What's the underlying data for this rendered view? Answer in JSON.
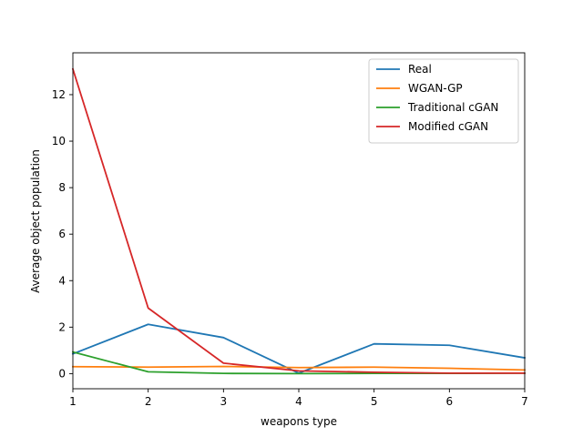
{
  "chart_data": {
    "type": "line",
    "xlabel": "weapons type",
    "ylabel": "Average object population",
    "xlim": [
      1,
      7
    ],
    "ylim": [
      -0.65,
      13.8
    ],
    "xticks": [
      1,
      2,
      3,
      4,
      5,
      6,
      7
    ],
    "yticks": [
      0,
      2,
      4,
      6,
      8,
      10,
      12
    ],
    "legend_position": "top-right",
    "grid": false,
    "x": [
      1,
      2,
      3,
      4,
      5,
      6,
      7
    ],
    "series": [
      {
        "name": "Real",
        "color": "#1f77b4",
        "values": [
          0.85,
          2.12,
          1.55,
          0.02,
          1.28,
          1.22,
          0.68
        ]
      },
      {
        "name": "WGAN-GP",
        "color": "#ff7f0e",
        "values": [
          0.3,
          0.28,
          0.31,
          0.26,
          0.28,
          0.23,
          0.16
        ]
      },
      {
        "name": "Traditional cGAN",
        "color": "#2ca02c",
        "values": [
          0.93,
          0.08,
          0.01,
          0.0,
          0.01,
          0.01,
          0.02
        ]
      },
      {
        "name": "Modified cGAN",
        "color": "#d62728",
        "values": [
          13.1,
          2.82,
          0.45,
          0.12,
          0.06,
          0.02,
          0.02
        ]
      }
    ]
  }
}
